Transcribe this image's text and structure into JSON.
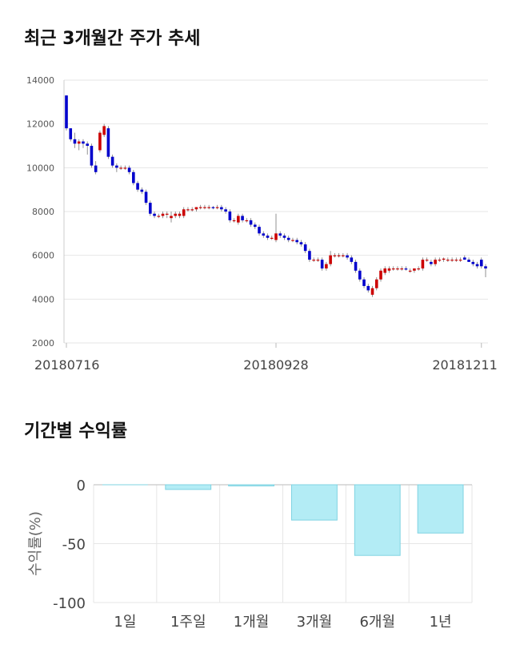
{
  "sections": {
    "price_title": "최근 3개월간 주가 추세",
    "returns_title": "기간별 수익률"
  },
  "colors": {
    "up": "#cc0000",
    "down": "#0000cc",
    "bar_fill": "#b3ecf5",
    "bar_stroke": "#7fd3e2",
    "grid": "#e6e6e6"
  },
  "chart_data": [
    {
      "type": "candlestick",
      "title": "최근 3개월간 주가 추세",
      "ylim": [
        2000,
        14000
      ],
      "yticks": [
        "14000",
        "12000",
        "10000",
        "8000",
        "6000",
        "4000",
        "2000"
      ],
      "xtick_labels": [
        {
          "label": "20180716",
          "index": 0
        },
        {
          "label": "20180928",
          "index": 50
        },
        {
          "label": "20181211",
          "index": 99
        }
      ],
      "ohlc": [
        [
          13300,
          13300,
          11700,
          11800
        ],
        [
          11800,
          11800,
          11200,
          11300
        ],
        [
          11300,
          11600,
          10900,
          11100
        ],
        [
          11100,
          11300,
          10800,
          11200
        ],
        [
          11200,
          11300,
          10900,
          11100
        ],
        [
          11100,
          11200,
          10600,
          11000
        ],
        [
          11000,
          11100,
          10000,
          10100
        ],
        [
          10100,
          10300,
          9700,
          9800
        ],
        [
          10800,
          11700,
          10700,
          11600
        ],
        [
          11500,
          12000,
          11400,
          11900
        ],
        [
          11800,
          11900,
          10400,
          10500
        ],
        [
          10500,
          10600,
          10000,
          10100
        ],
        [
          10100,
          10200,
          9800,
          10000
        ],
        [
          10000,
          10100,
          9900,
          10000
        ],
        [
          10000,
          10100,
          9900,
          10000
        ],
        [
          10000,
          10100,
          9700,
          9800
        ],
        [
          9800,
          9900,
          9200,
          9300
        ],
        [
          9300,
          9400,
          8900,
          9000
        ],
        [
          9000,
          9100,
          8800,
          8900
        ],
        [
          8900,
          9000,
          8300,
          8400
        ],
        [
          8400,
          8500,
          7800,
          7900
        ],
        [
          7900,
          8000,
          7700,
          7800
        ],
        [
          7800,
          7900,
          7700,
          7800
        ],
        [
          7800,
          8000,
          7700,
          7900
        ],
        [
          7900,
          8000,
          7700,
          7900
        ],
        [
          7700,
          8000,
          7500,
          7800
        ],
        [
          7800,
          8000,
          7700,
          7900
        ],
        [
          7800,
          8000,
          7700,
          7900
        ],
        [
          7800,
          8200,
          7700,
          8100
        ],
        [
          8100,
          8200,
          8000,
          8100
        ],
        [
          8100,
          8200,
          8000,
          8100
        ],
        [
          8100,
          8200,
          8000,
          8200
        ],
        [
          8200,
          8300,
          8100,
          8200
        ],
        [
          8200,
          8300,
          8100,
          8200
        ],
        [
          8200,
          8300,
          8100,
          8200
        ],
        [
          8200,
          8250,
          8100,
          8150
        ],
        [
          8200,
          8300,
          8100,
          8200
        ],
        [
          8200,
          8300,
          8000,
          8100
        ],
        [
          8100,
          8200,
          7900,
          8000
        ],
        [
          8000,
          8100,
          7500,
          7600
        ],
        [
          7600,
          7700,
          7500,
          7600
        ],
        [
          7500,
          7900,
          7400,
          7800
        ],
        [
          7800,
          7900,
          7500,
          7600
        ],
        [
          7600,
          7700,
          7500,
          7600
        ],
        [
          7600,
          7700,
          7300,
          7400
        ],
        [
          7400,
          7500,
          7200,
          7300
        ],
        [
          7300,
          7400,
          6900,
          7000
        ],
        [
          7000,
          7100,
          6800,
          6900
        ],
        [
          6900,
          7000,
          6700,
          6800
        ],
        [
          6800,
          6900,
          6700,
          6800
        ],
        [
          6700,
          7900,
          6600,
          7000
        ],
        [
          7000,
          7100,
          6800,
          6900
        ],
        [
          6900,
          7000,
          6700,
          6800
        ],
        [
          6800,
          6900,
          6600,
          6700
        ],
        [
          6700,
          6800,
          6600,
          6700
        ],
        [
          6700,
          6800,
          6500,
          6600
        ],
        [
          6600,
          6700,
          6400,
          6500
        ],
        [
          6500,
          6600,
          6100,
          6200
        ],
        [
          6200,
          6300,
          5700,
          5800
        ],
        [
          5800,
          5900,
          5700,
          5800
        ],
        [
          5800,
          5900,
          5700,
          5800
        ],
        [
          5800,
          5900,
          5300,
          5400
        ],
        [
          5400,
          5700,
          5300,
          5600
        ],
        [
          5600,
          6200,
          5500,
          6000
        ],
        [
          6000,
          6100,
          5900,
          6000
        ],
        [
          6000,
          6100,
          5900,
          6000
        ],
        [
          6000,
          6100,
          5900,
          6000
        ],
        [
          6000,
          6100,
          5800,
          5900
        ],
        [
          5900,
          6000,
          5600,
          5700
        ],
        [
          5700,
          5800,
          5200,
          5300
        ],
        [
          5300,
          5400,
          4800,
          4900
        ],
        [
          4900,
          5000,
          4500,
          4600
        ],
        [
          4600,
          4700,
          4300,
          4400
        ],
        [
          4200,
          4600,
          4100,
          4500
        ],
        [
          4500,
          5000,
          4400,
          4900
        ],
        [
          4900,
          5400,
          4800,
          5300
        ],
        [
          5200,
          5500,
          5100,
          5400
        ],
        [
          5300,
          5500,
          5200,
          5400
        ],
        [
          5400,
          5500,
          5300,
          5400
        ],
        [
          5400,
          5500,
          5300,
          5400
        ],
        [
          5400,
          5500,
          5300,
          5400
        ],
        [
          5400,
          5500,
          5300,
          5350
        ],
        [
          5300,
          5400,
          5200,
          5300
        ],
        [
          5300,
          5400,
          5200,
          5400
        ],
        [
          5400,
          5500,
          5300,
          5400
        ],
        [
          5400,
          5900,
          5300,
          5800
        ],
        [
          5800,
          5900,
          5700,
          5800
        ],
        [
          5700,
          5800,
          5500,
          5600
        ],
        [
          5600,
          5900,
          5500,
          5800
        ],
        [
          5800,
          5900,
          5700,
          5800
        ],
        [
          5800,
          5900,
          5700,
          5850
        ],
        [
          5800,
          5900,
          5700,
          5800
        ],
        [
          5800,
          5900,
          5700,
          5800
        ],
        [
          5800,
          5900,
          5700,
          5800
        ],
        [
          5800,
          5900,
          5700,
          5800
        ],
        [
          5900,
          6000,
          5800,
          5800
        ],
        [
          5800,
          5900,
          5700,
          5700
        ],
        [
          5700,
          5800,
          5500,
          5600
        ],
        [
          5600,
          5700,
          5400,
          5500
        ],
        [
          5800,
          5900,
          5400,
          5500
        ],
        [
          5500,
          5600,
          5000,
          5400
        ]
      ]
    },
    {
      "type": "bar",
      "categories": [
        "1일",
        "1주일",
        "1개월",
        "3개월",
        "6개월",
        "1년"
      ],
      "values": [
        0,
        -4,
        -1,
        -30,
        -60,
        -41
      ],
      "ylabel": "수익률(%)",
      "ylim": [
        -100,
        0
      ],
      "yticks": [
        "0",
        "-50",
        "-100"
      ]
    }
  ]
}
